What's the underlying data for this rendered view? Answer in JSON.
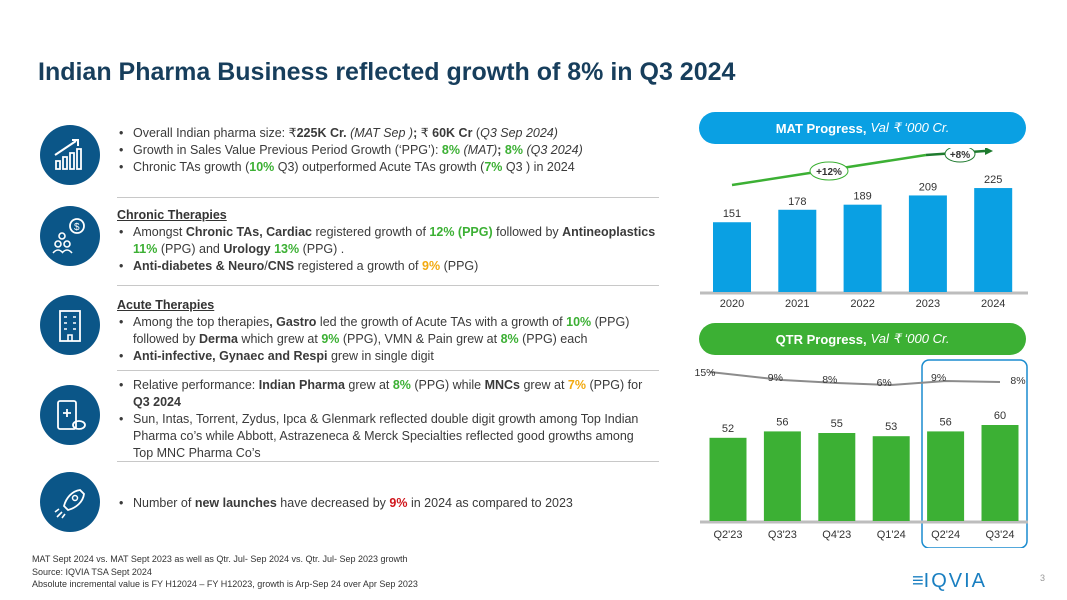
{
  "title": "Indian Pharma Business reflected growth of 8% in Q3 2024",
  "sections": [
    {
      "icon": "growth-chart-icon",
      "subtitle": "",
      "bullets": [
        [
          {
            "t": "Overall Indian pharma size: ₹"
          },
          {
            "t": "225K  Cr.",
            "s": "b"
          },
          {
            "t": " (MAT Sep )",
            "s": "i"
          },
          {
            "t": "; ",
            "s": "b"
          },
          {
            "t": "₹ "
          },
          {
            "t": "60K Cr",
            "s": "b"
          },
          {
            "t": " ("
          },
          {
            "t": "Q3 Sep 2024)",
            "s": "i"
          }
        ],
        [
          {
            "t": "Growth in Sales Value Previous Period Growth (‘PPG’): "
          },
          {
            "t": "8%",
            "s": "g"
          },
          {
            "t": " (MAT)",
            "s": "i"
          },
          {
            "t": "; ",
            "s": "b"
          },
          {
            "t": "8%",
            "s": "g"
          },
          {
            "t": " (Q3 2024)",
            "s": "i"
          }
        ],
        [
          {
            "t": "Chronic TAs growth ("
          },
          {
            "t": "10%",
            "s": "g"
          },
          {
            "t": " Q3) outperformed Acute TAs growth ("
          },
          {
            "t": "7%",
            "s": "g"
          },
          {
            "t": " Q3 ) in 2024"
          }
        ]
      ]
    },
    {
      "icon": "people-money-icon",
      "subtitle": "Chronic Therapies",
      "bullets": [
        [
          {
            "t": "Amongst "
          },
          {
            "t": "Chronic TAs, Cardiac",
            "s": "b"
          },
          {
            "t": " registered growth of "
          },
          {
            "t": "12% (PPG)",
            "s": "g"
          },
          {
            "t": " followed by "
          },
          {
            "t": "Antineoplastics",
            "s": "b"
          },
          {
            "t": " "
          },
          {
            "t": "11%",
            "s": "g"
          },
          {
            "t": " (PPG) and "
          },
          {
            "t": "Urology",
            "s": "b"
          },
          {
            "t": " "
          },
          {
            "t": "13%",
            "s": "g"
          },
          {
            "t": " (PPG) ."
          }
        ],
        [
          {
            "t": "Anti-diabetes & Neuro",
            "s": "b"
          },
          {
            "t": "/"
          },
          {
            "t": "CNS",
            "s": "b"
          },
          {
            "t": " registered a growth of "
          },
          {
            "t": "9%",
            "s": "o"
          },
          {
            "t": " (PPG)"
          }
        ]
      ]
    },
    {
      "icon": "hospital-building-icon",
      "subtitle": "Acute Therapies",
      "bullets": [
        [
          {
            "t": "Among the top therapies"
          },
          {
            "t": ", Gastro",
            "s": "b"
          },
          {
            "t": " led the growth of  Acute TAs with a growth of "
          },
          {
            "t": "10%",
            "s": "g"
          },
          {
            "t": " (PPG) followed by "
          },
          {
            "t": "Derma",
            "s": "b"
          },
          {
            "t": " which grew at "
          },
          {
            "t": "9%",
            "s": "g"
          },
          {
            "t": " (PPG), VMN & Pain grew at "
          },
          {
            "t": "8%",
            "s": "g"
          },
          {
            "t": " (PPG) each"
          }
        ],
        [
          {
            "t": "Anti-infective, Gynaec and Respi",
            "s": "b"
          },
          {
            "t": " grew in single digit"
          }
        ]
      ]
    },
    {
      "icon": "medicine-icon",
      "subtitle": "",
      "bullets": [
        [
          {
            "t": "Relative performance: "
          },
          {
            "t": "Indian Pharma",
            "s": "b"
          },
          {
            "t": " grew at "
          },
          {
            "t": "8%",
            "s": "g"
          },
          {
            "t": " (PPG) while "
          },
          {
            "t": "MNCs",
            "s": "b"
          },
          {
            "t": " grew at "
          },
          {
            "t": "7%",
            "s": "o"
          },
          {
            "t": " (PPG) for "
          },
          {
            "t": "Q3 2024",
            "s": "b"
          }
        ],
        [
          {
            "t": "Sun, Intas, Torrent, Zydus, Ipca & Glenmark reflected double digit growth among Top Indian Pharma co’s while Abbott, Astrazeneca & Merck Specialties reflected good growths among Top MNC Pharma Co’s"
          }
        ]
      ]
    },
    {
      "icon": "rocket-icon",
      "subtitle": "",
      "bullets": [
        [
          {
            "t": "Number of "
          },
          {
            "t": "new launches",
            "s": "b"
          },
          {
            "t": " have decreased by "
          },
          {
            "t": "9%",
            "s": "r"
          },
          {
            "t": " in 2024 as compared to 2023"
          }
        ]
      ]
    }
  ],
  "mat_header": {
    "bold": "MAT Progress,",
    "italic": "Val ₹ ‘000 Cr.",
    "color": "#0aa0e3"
  },
  "qtr_header": {
    "bold": "QTR Progress,",
    "italic": "Val ₹ ‘000 Cr.",
    "color": "#3cb034"
  },
  "chart_data": [
    {
      "type": "bar",
      "title": "MAT Progress, Val ₹ ‘000 Cr.",
      "categories": [
        "2020",
        "2021",
        "2022",
        "2023",
        "2024"
      ],
      "values": [
        151,
        178,
        189,
        209,
        225
      ],
      "color": "#0aa0e3",
      "annotations": [
        {
          "label": "+12%",
          "span": [
            "2020",
            "2023"
          ]
        },
        {
          "label": "+8%",
          "span": [
            "2023",
            "2024"
          ]
        }
      ]
    },
    {
      "type": "bar",
      "title": "QTR Progress, Val ₹ ‘000 Cr.",
      "categories": [
        "Q2'23",
        "Q3'23",
        "Q4'23",
        "Q1'24",
        "Q2'24",
        "Q3'24"
      ],
      "values": [
        52,
        56,
        55,
        53,
        56,
        60
      ],
      "color": "#3cb034",
      "growth_line": {
        "labels": [
          "15%",
          "9%",
          "8%",
          "6%",
          "9%",
          "8%"
        ],
        "values": [
          15,
          9,
          8,
          6,
          9,
          8
        ],
        "color": "#8c8c8c"
      },
      "highlight": [
        "Q2'24",
        "Q3'24"
      ],
      "highlight_color": "#1a8ccf"
    }
  ],
  "footer": [
    "MAT Sept 2024 vs. MAT Sept 2023 as well as Qtr. Jul- Sep 2024 vs. Qtr. Jul- Sep 2023 growth",
    "Source: IQVIA TSA Sept 2024",
    "Absolute incremental value is FY H12024 – FY H12023, growth is Arp-Sep 24 over Apr Sep 2023"
  ],
  "logo": "IQVIA",
  "page_number": "3"
}
